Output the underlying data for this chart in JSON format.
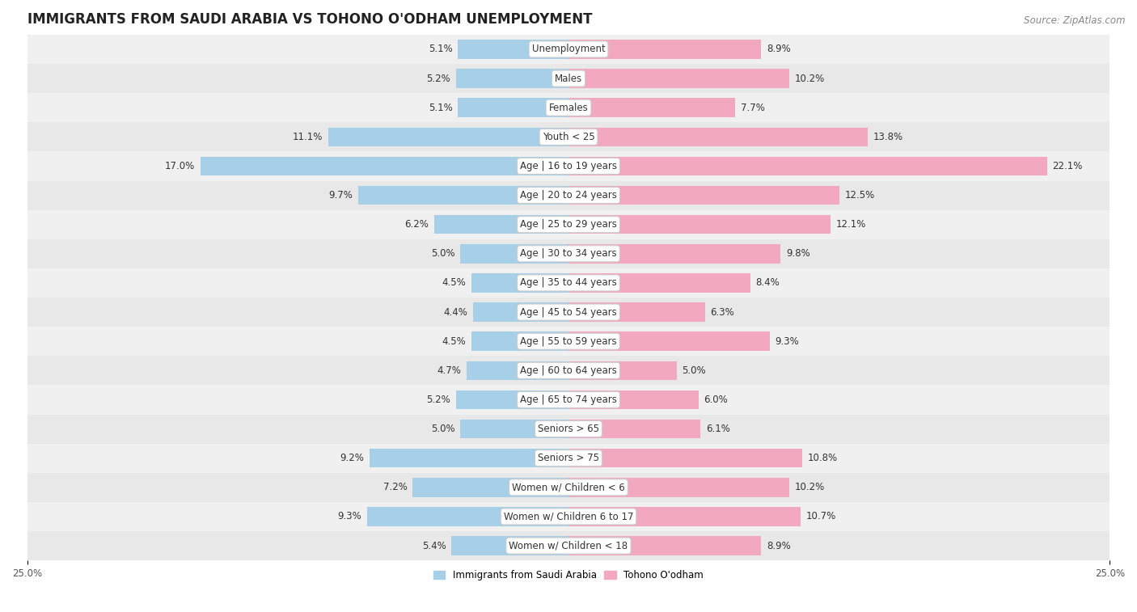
{
  "title": "IMMIGRANTS FROM SAUDI ARABIA VS TOHONO O'ODHAM UNEMPLOYMENT",
  "source": "Source: ZipAtlas.com",
  "categories": [
    "Unemployment",
    "Males",
    "Females",
    "Youth < 25",
    "Age | 16 to 19 years",
    "Age | 20 to 24 years",
    "Age | 25 to 29 years",
    "Age | 30 to 34 years",
    "Age | 35 to 44 years",
    "Age | 45 to 54 years",
    "Age | 55 to 59 years",
    "Age | 60 to 64 years",
    "Age | 65 to 74 years",
    "Seniors > 65",
    "Seniors > 75",
    "Women w/ Children < 6",
    "Women w/ Children 6 to 17",
    "Women w/ Children < 18"
  ],
  "left_values": [
    5.1,
    5.2,
    5.1,
    11.1,
    17.0,
    9.7,
    6.2,
    5.0,
    4.5,
    4.4,
    4.5,
    4.7,
    5.2,
    5.0,
    9.2,
    7.2,
    9.3,
    5.4
  ],
  "right_values": [
    8.9,
    10.2,
    7.7,
    13.8,
    22.1,
    12.5,
    12.1,
    9.8,
    8.4,
    6.3,
    9.3,
    5.0,
    6.0,
    6.1,
    10.8,
    10.2,
    10.7,
    8.9
  ],
  "left_color": "#a8cfe8",
  "right_color": "#f2a8be",
  "xlim": 25.0,
  "bg_color": "#ffffff",
  "row_colors": [
    "#f0f0f0",
    "#e8e8e8"
  ],
  "legend_left": "Immigrants from Saudi Arabia",
  "legend_right": "Tohono O'odham",
  "title_fontsize": 12,
  "label_fontsize": 8.5,
  "value_fontsize": 8.5,
  "source_fontsize": 8.5,
  "bar_height": 0.65,
  "label_box_color": "#ffffff",
  "label_box_border": "#cccccc"
}
